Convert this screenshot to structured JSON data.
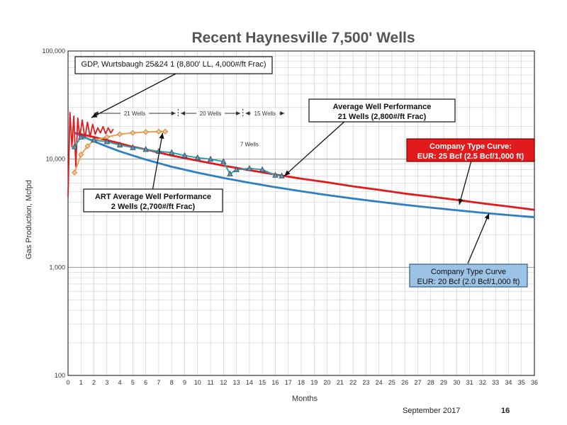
{
  "chart_data": {
    "type": "line",
    "title": "Recent Haynesville 7,500' Wells",
    "xlabel": "Months",
    "ylabel": "Gas Production, Mcfpd",
    "xlim": [
      0,
      36
    ],
    "ylim": [
      100,
      100000
    ],
    "yscale": "log",
    "grid": true,
    "x_ticks": [
      "0",
      "1",
      "2",
      "3",
      "4",
      "5",
      "6",
      "7",
      "8",
      "9",
      "10",
      "11",
      "12",
      "13",
      "14",
      "15",
      "16",
      "17",
      "18",
      "19",
      "20",
      "21",
      "22",
      "23",
      "24",
      "25",
      "26",
      "27",
      "28",
      "29",
      "30",
      "31",
      "32",
      "33",
      "34",
      "35",
      "36"
    ],
    "y_ticks": [
      {
        "value": 100,
        "label": "100"
      },
      {
        "value": 1000,
        "label": "1,000"
      },
      {
        "value": 10000,
        "label": "10,000"
      },
      {
        "value": 100000,
        "label": "100,000"
      }
    ],
    "series": [
      {
        "name": "Company Type Curve: EUR: 25 Bcf (2.5 Bcf/1,000 ft)",
        "color": "#e31a1c",
        "x": [
          0.5,
          1,
          2,
          3,
          4,
          5,
          6,
          8,
          10,
          12,
          14,
          16,
          18,
          20,
          22,
          24,
          26,
          28,
          30,
          32,
          34,
          36
        ],
        "y": [
          17500,
          17000,
          16000,
          15000,
          14000,
          13000,
          12300,
          10800,
          9700,
          8700,
          7900,
          7200,
          6600,
          6100,
          5600,
          5200,
          4800,
          4500,
          4200,
          3900,
          3650,
          3400
        ]
      },
      {
        "name": "Company Type Curve EUR: 20 Bcf (2.0 Bcf/1,000 ft)",
        "color": "#2f7fc1",
        "x": [
          0.5,
          1,
          2,
          3,
          4,
          5,
          6,
          8,
          10,
          12,
          14,
          16,
          18,
          20,
          22,
          24,
          26,
          28,
          30,
          32,
          34,
          36
        ],
        "y": [
          17500,
          16500,
          14600,
          13100,
          11800,
          10800,
          9900,
          8500,
          7500,
          6700,
          6050,
          5500,
          5050,
          4650,
          4320,
          4030,
          3780,
          3560,
          3370,
          3190,
          3040,
          2900
        ]
      },
      {
        "name": "Average Well Performance 21 Wells (2,800#/ft Frac)",
        "color": "#2aa3ad",
        "marker": "triangle",
        "x": [
          0.5,
          1,
          2,
          3,
          4,
          5,
          6,
          7,
          8,
          9,
          10,
          11,
          12,
          12.5,
          13,
          14,
          15,
          16,
          16.5
        ],
        "y": [
          13000,
          16000,
          15000,
          14500,
          13500,
          12800,
          12300,
          11800,
          11500,
          10800,
          10300,
          10000,
          9500,
          7300,
          8000,
          8200,
          8000,
          7100,
          7000
        ]
      },
      {
        "name": "ART Average Well Performance 2 Wells (2,700#/ft Frac)",
        "color": "#e8a14f",
        "marker": "diamond",
        "x": [
          0.5,
          1,
          1.5,
          2,
          3,
          4,
          5,
          6,
          7,
          7.5
        ],
        "y": [
          7500,
          11000,
          13200,
          15000,
          16000,
          17000,
          17500,
          17800,
          18000,
          18000
        ]
      },
      {
        "name": "GDP, Wurtsbaugh 25&24 1 (8,800' LL, 4,000#/ft Frac)",
        "color": "#e31a1c",
        "x": [
          0,
          0.15,
          0.3,
          0.45,
          0.6,
          0.75,
          0.9,
          1.1,
          1.3,
          1.5,
          1.7,
          1.9,
          2.1,
          2.3,
          2.5,
          2.7,
          2.9,
          3.1,
          3.3,
          3.5
        ],
        "y": [
          4500,
          27000,
          13000,
          25000,
          8500,
          24000,
          16000,
          23000,
          15500,
          22000,
          16000,
          21000,
          17000,
          19500,
          17500,
          20000,
          17200,
          19500,
          17500,
          19000
        ]
      }
    ],
    "annotations": [
      {
        "text": "GDP, Wurtsbaugh 25&24 1 (8,800' LL, 4,000#/ft Frac)"
      },
      {
        "text": "Average Well Performance",
        "text2": "21 Wells (2,800#/ft Frac)"
      },
      {
        "text": "Company Type Curve:",
        "text2": "EUR: 25 Bcf (2.5 Bcf/1,000 ft)"
      },
      {
        "text": "ART Average Well Performance",
        "text2": "2 Wells (2,700#/ft Frac)"
      },
      {
        "text": "Company Type Curve",
        "text2": "EUR: 20 Bcf (2.0 Bcf/1,000 ft)"
      }
    ],
    "range_labels": [
      "21 Wells",
      "20 Wells",
      "15 Wells",
      "7 Wells"
    ]
  },
  "footer": {
    "date": "September 2017",
    "page": "16"
  }
}
